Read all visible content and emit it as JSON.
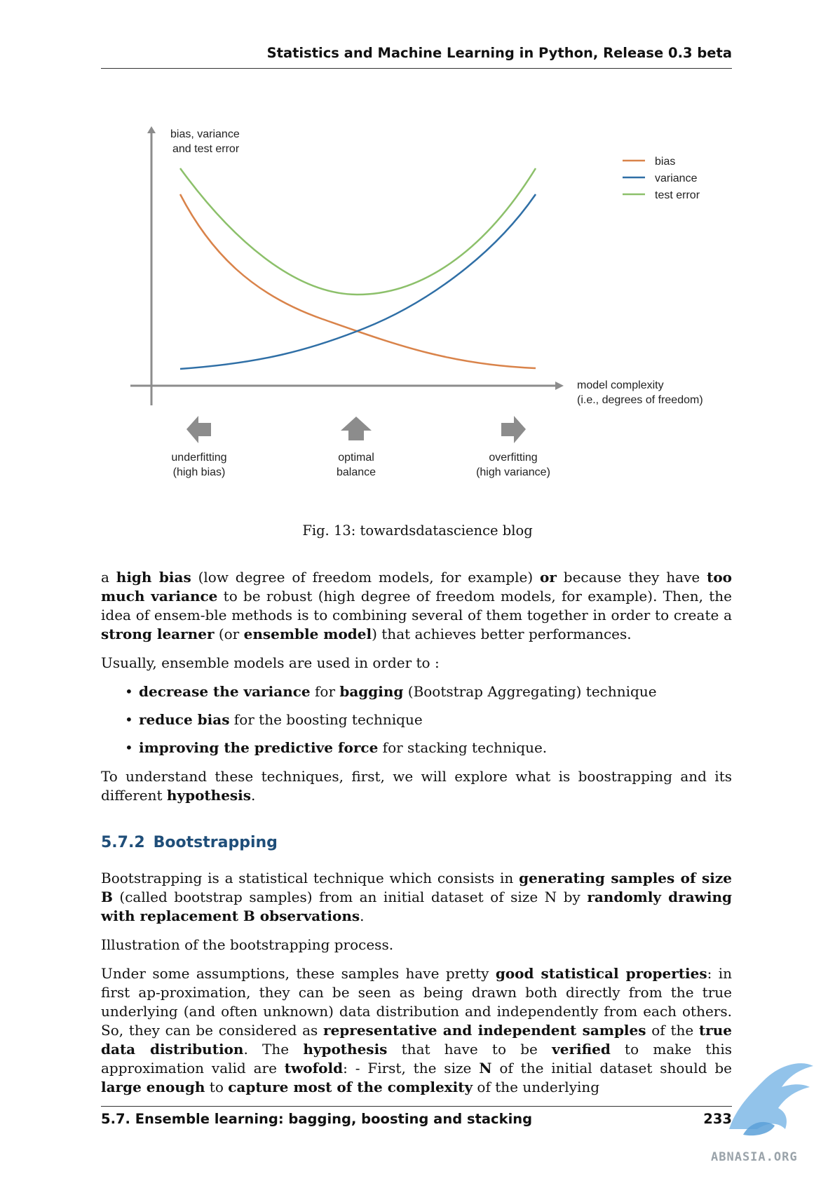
{
  "header": {
    "title": "Statistics and Machine Learning in Python, Release 0.3 beta"
  },
  "figure": {
    "y_axis_label_line1": "bias, variance",
    "y_axis_label_line2": "and test error",
    "x_axis_label_line1": "model complexity",
    "x_axis_label_line2": "(i.e., degrees of freedom)",
    "legend": [
      {
        "label": "bias",
        "color": "#d9834a"
      },
      {
        "label": "variance",
        "color": "#2f6fa6"
      },
      {
        "label": "test error",
        "color": "#8cc06a"
      }
    ],
    "regions": [
      {
        "line1": "underfitting",
        "line2": "(high bias)",
        "arrow": "left-arrow-icon"
      },
      {
        "line1": "optimal",
        "line2": "balance",
        "arrow": "up-arrow-icon"
      },
      {
        "line1": "overfitting",
        "line2": "(high variance)",
        "arrow": "right-arrow-icon"
      }
    ],
    "caption": "Fig. 13: towardsdatascience blog"
  },
  "body": {
    "p1": [
      {
        "t": "a "
      },
      {
        "t": "high bias",
        "b": true
      },
      {
        "t": " (low degree of freedom models, for example) "
      },
      {
        "t": "or",
        "b": true
      },
      {
        "t": " because they have "
      },
      {
        "t": "too much variance",
        "b": true
      },
      {
        "t": " to be robust (high degree of freedom models, for example). Then, the idea of ensem-ble methods is to combining several of them together in order to create a "
      },
      {
        "t": "strong learner",
        "b": true
      },
      {
        "t": " (or "
      },
      {
        "t": "ensemble model",
        "b": true
      },
      {
        "t": ") that achieves better performances."
      }
    ],
    "p2": "Usually, ensemble models are used in order to :",
    "bullets": [
      [
        {
          "t": "decrease the variance",
          "b": true
        },
        {
          "t": " for "
        },
        {
          "t": "bagging",
          "b": true
        },
        {
          "t": " (Bootstrap Aggregating) technique"
        }
      ],
      [
        {
          "t": "reduce bias",
          "b": true
        },
        {
          "t": " for the boosting technique"
        }
      ],
      [
        {
          "t": "improving the predictive force",
          "b": true
        },
        {
          "t": " for stacking technique."
        }
      ]
    ],
    "p3": [
      {
        "t": "To understand these techniques, first, we will explore what is boostrapping and its different "
      },
      {
        "t": "hypothesis",
        "b": true
      },
      {
        "t": "."
      }
    ],
    "section_number": "5.7.2",
    "section_title": "Bootstrapping",
    "p4": [
      {
        "t": "Bootstrapping is a statistical technique which consists in "
      },
      {
        "t": "generating samples of size B",
        "b": true
      },
      {
        "t": " (called bootstrap samples) from an initial dataset of size N by "
      },
      {
        "t": "randomly drawing with replacement B observations",
        "b": true
      },
      {
        "t": "."
      }
    ],
    "p5": "Illustration of the bootstrapping process.",
    "p6": [
      {
        "t": "Under some assumptions, these samples have pretty "
      },
      {
        "t": "good statistical properties",
        "b": true
      },
      {
        "t": ": in first ap-proximation, they can be seen as being drawn both directly from the true underlying (and often unknown) data distribution and independently from each others. So, they can be considered as "
      },
      {
        "t": "representative and independent samples",
        "b": true
      },
      {
        "t": " of the "
      },
      {
        "t": "true data distribution",
        "b": true
      },
      {
        "t": ". The "
      },
      {
        "t": "hypothesis",
        "b": true
      },
      {
        "t": " that have to be "
      },
      {
        "t": "verified",
        "b": true
      },
      {
        "t": " to make this approximation valid are "
      },
      {
        "t": "twofold",
        "b": true
      },
      {
        "t": ": - First, the size "
      },
      {
        "t": "N",
        "b": true
      },
      {
        "t": " of the initial dataset should be "
      },
      {
        "t": "large enough",
        "b": true
      },
      {
        "t": " to "
      },
      {
        "t": "capture most of the complexity",
        "b": true
      },
      {
        "t": " of the underlying"
      }
    ]
  },
  "footer": {
    "section": "5.7.  Ensemble learning: bagging, boosting and stacking",
    "page_number": "233"
  },
  "watermark": {
    "text": "ABNASIA.ORG"
  }
}
